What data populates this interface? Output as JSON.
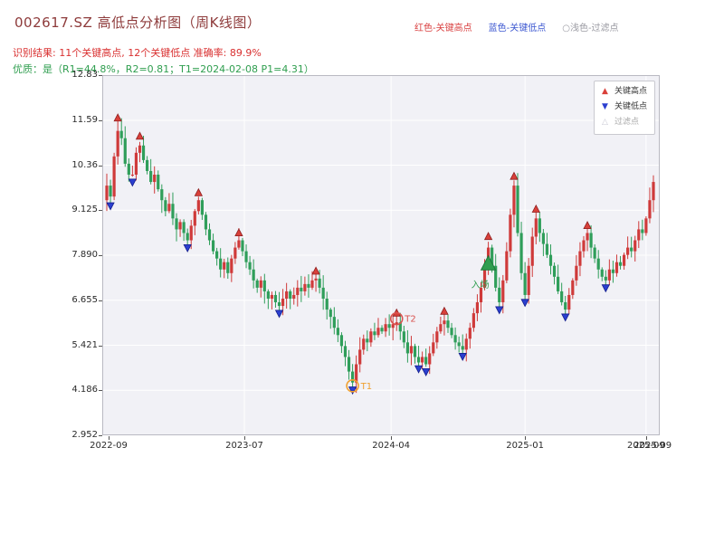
{
  "header": {
    "title": "002617.SZ 高低点分析图（周K线图）",
    "legend_top": [
      {
        "label": "红色-关键高点",
        "color": "#d94040"
      },
      {
        "label": "蓝色-关键低点",
        "color": "#3c57d0"
      },
      {
        "label": "○浅色-过滤点",
        "color": "#9a9aa2"
      }
    ],
    "subtitle1": "识别结果: 11个关键高点, 12个关键低点  准确率: 89.9%",
    "subtitle2": "优质：是（R1=44.8%，R2=0.81；T1=2024-02-08 P1=4.31）"
  },
  "chart_data": {
    "type": "candlestick",
    "title": "002617.SZ 高低点分析图（周K线图）",
    "symbol": "002617.SZ",
    "period": "weekly",
    "y_range": [
      2.952,
      12.83
    ],
    "y_ticks": [
      {
        "label": "12.83",
        "value": 12.83
      },
      {
        "label": "11.59",
        "value": 11.59
      },
      {
        "label": "10.36",
        "value": 10.36
      },
      {
        "label": "9.125",
        "value": 9.125
      },
      {
        "label": "7.890",
        "value": 7.89
      },
      {
        "label": "6.655",
        "value": 6.655
      },
      {
        "label": "5.421",
        "value": 5.421
      },
      {
        "label": "4.186",
        "value": 4.186
      },
      {
        "label": "2.952",
        "value": 2.952
      }
    ],
    "x_ticks": [
      {
        "label": "2022-09",
        "week": 0.5,
        "grid": false
      },
      {
        "label": "2023-07",
        "week": 37.5,
        "grid": true
      },
      {
        "label": "2024-04",
        "week": 77.5,
        "grid": true
      },
      {
        "label": "2025-01",
        "week": 114,
        "grid": true
      },
      {
        "label": "2025-09",
        "week": 147,
        "grid": true
      },
      {
        "label": "2025-09",
        "week": 148.8,
        "grid": false,
        "dup": true
      }
    ],
    "first_open": 9.4,
    "closes": [
      9.8,
      9.5,
      10.6,
      11.3,
      11.1,
      10.4,
      10.1,
      10.1,
      10.7,
      10.9,
      10.5,
      10.2,
      9.9,
      10.1,
      9.7,
      9.4,
      9.1,
      9.3,
      8.9,
      8.6,
      8.8,
      8.5,
      8.3,
      8.7,
      9.1,
      9.4,
      9.0,
      8.6,
      8.3,
      8.0,
      7.8,
      7.5,
      7.7,
      7.4,
      7.8,
      8.1,
      8.3,
      8.0,
      7.7,
      7.5,
      7.2,
      7.0,
      7.2,
      6.9,
      6.7,
      6.8,
      6.6,
      6.5,
      6.7,
      6.9,
      6.7,
      6.8,
      7.0,
      6.9,
      7.1,
      7.0,
      7.2,
      7.25,
      7.0,
      6.7,
      6.4,
      6.2,
      5.9,
      5.7,
      5.4,
      5.1,
      4.7,
      4.4,
      4.9,
      5.3,
      5.6,
      5.5,
      5.8,
      5.7,
      5.9,
      5.8,
      6.0,
      5.9,
      6.0,
      6.05,
      5.8,
      5.5,
      5.2,
      5.4,
      5.1,
      4.95,
      5.1,
      4.9,
      5.2,
      5.5,
      5.8,
      6.0,
      6.1,
      5.9,
      5.7,
      5.5,
      5.4,
      5.3,
      5.6,
      5.9,
      6.3,
      6.6,
      7.0,
      7.6,
      8.1,
      7.6,
      7.0,
      6.6,
      7.2,
      8.0,
      9.0,
      9.8,
      8.5,
      7.4,
      6.8,
      7.6,
      8.4,
      8.9,
      8.5,
      8.2,
      7.9,
      7.6,
      7.3,
      6.9,
      6.6,
      6.4,
      6.8,
      7.2,
      7.6,
      8.0,
      8.3,
      8.5,
      8.1,
      7.8,
      7.5,
      7.3,
      7.2,
      7.5,
      7.4,
      7.7,
      7.6,
      7.9,
      8.1,
      8.0,
      8.3,
      8.6,
      8.5,
      8.9,
      9.4,
      9.9
    ],
    "key_highs": [
      {
        "week": 3,
        "value": 11.65
      },
      {
        "week": 9,
        "value": 11.15
      },
      {
        "week": 25,
        "value": 9.6
      },
      {
        "week": 36,
        "value": 8.5
      },
      {
        "week": 57,
        "value": 7.45
      },
      {
        "week": 79,
        "value": 6.3
      },
      {
        "week": 92,
        "value": 6.35
      },
      {
        "week": 104,
        "value": 8.4
      },
      {
        "week": 111,
        "value": 10.05
      },
      {
        "week": 117,
        "value": 9.15
      },
      {
        "week": 131,
        "value": 8.7
      }
    ],
    "key_lows": [
      {
        "week": 1,
        "value": 9.25
      },
      {
        "week": 7,
        "value": 9.9
      },
      {
        "week": 22,
        "value": 8.1
      },
      {
        "week": 47,
        "value": 6.3
      },
      {
        "week": 67,
        "value": 4.2
      },
      {
        "week": 85,
        "value": 4.78
      },
      {
        "week": 87,
        "value": 4.7
      },
      {
        "week": 97,
        "value": 5.12
      },
      {
        "week": 107,
        "value": 6.4
      },
      {
        "week": 114,
        "value": 6.6
      },
      {
        "week": 125,
        "value": 6.2
      },
      {
        "week": 136,
        "value": 7.0
      }
    ],
    "annotations": {
      "t1": {
        "label": "T1",
        "week": 67,
        "value": 4.31,
        "color": "#f0a030"
      },
      "t2": {
        "label": "T2",
        "week": 79,
        "value": 6.15,
        "color": "#d9534f"
      },
      "entry": {
        "label": "入场",
        "week": 104,
        "value": 7.65,
        "label_value": 7.0,
        "color": "#2f9e4f"
      }
    },
    "legend_box": [
      {
        "glyph": "▲",
        "label": "关键高点",
        "color": "#d9403a",
        "text_color": "#333333"
      },
      {
        "glyph": "▼",
        "label": "关键低点",
        "color": "#2b3fd0",
        "text_color": "#333333"
      },
      {
        "glyph": "△",
        "label": "过滤点",
        "color": "#c9c9d4",
        "text_color": "#a8a8a8"
      }
    ],
    "colors": {
      "candle_up": "#cf3a3a",
      "candle_down": "#2f9e5a",
      "key_high": "#d9403a",
      "key_high_edge": "#8e1f1f",
      "key_low": "#2b3fd0",
      "key_low_edge": "#141f8c",
      "entry_edge": "#1d7a3c",
      "grid": "#ffffff",
      "plot_bg": "#f1f1f6",
      "axis": "#b9b9c2"
    }
  }
}
